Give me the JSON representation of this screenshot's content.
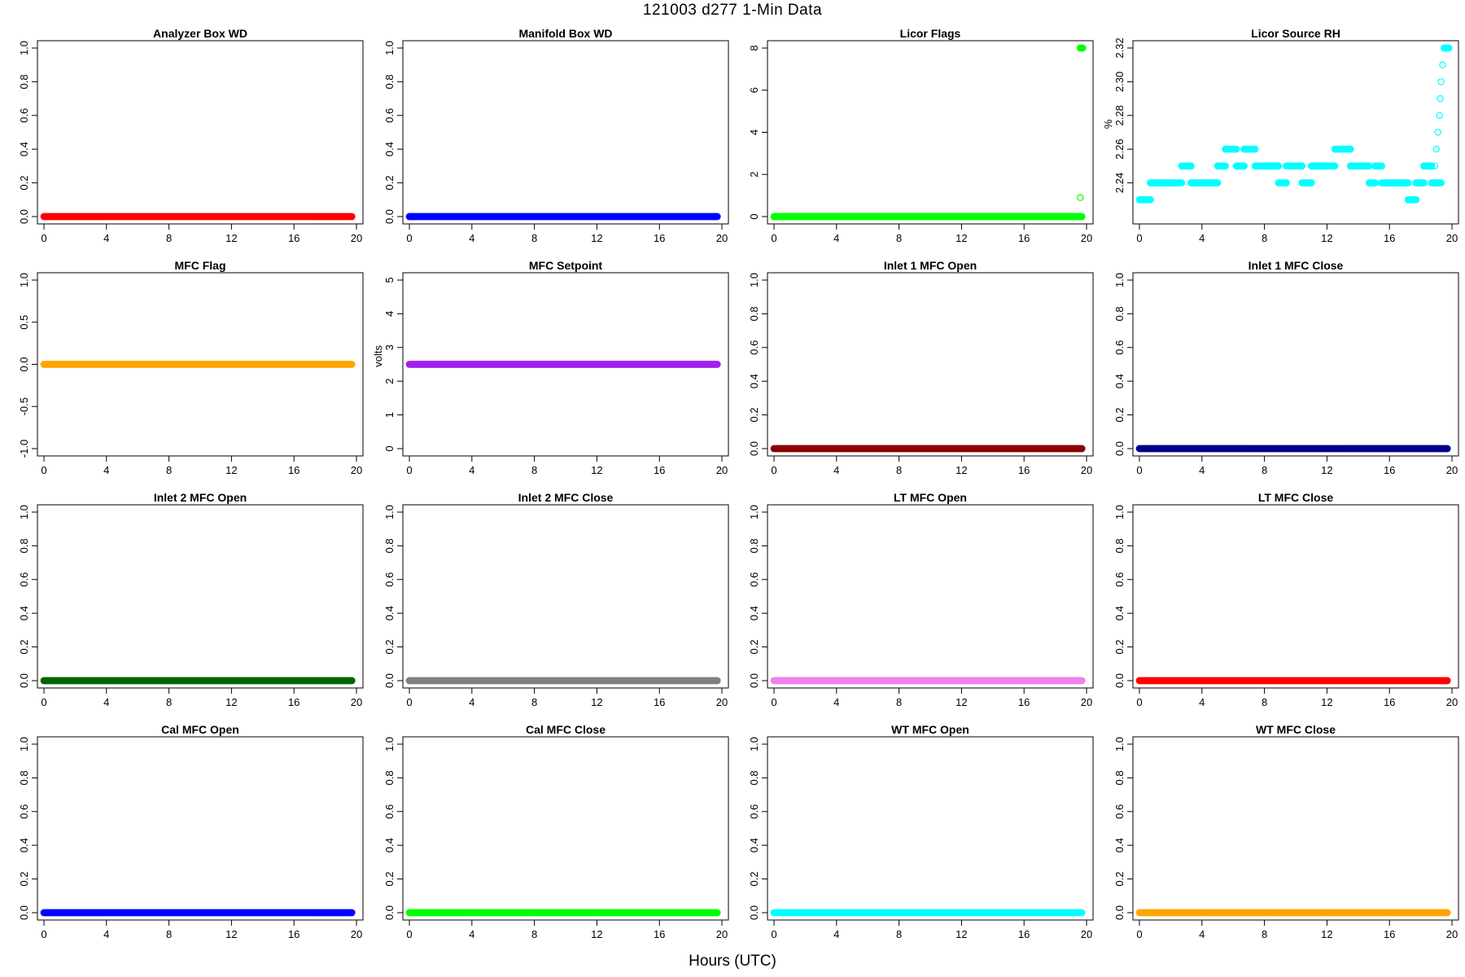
{
  "page": {
    "title": "121003   d277   1-Min Data",
    "xlabel": "Hours (UTC)"
  },
  "chart_data": [
    {
      "type": "scatter",
      "title": "Analyzer Box WD",
      "ylabel": "",
      "color": "#ff0000",
      "xlim": [
        0,
        20
      ],
      "ylim": [
        0,
        1
      ],
      "xticks": [
        0,
        4,
        8,
        12,
        16,
        20
      ],
      "yticks": [
        "0.0",
        "0.2",
        "0.4",
        "0.6",
        "0.8",
        "1.0"
      ],
      "series": [
        {
          "segments": [
            {
              "x": [
                0,
                19.7
              ],
              "y": 0
            }
          ]
        }
      ]
    },
    {
      "type": "scatter",
      "title": "Manifold Box WD",
      "ylabel": "",
      "color": "#0000ff",
      "xlim": [
        0,
        20
      ],
      "ylim": [
        0,
        1
      ],
      "xticks": [
        0,
        4,
        8,
        12,
        16,
        20
      ],
      "yticks": [
        "0.0",
        "0.2",
        "0.4",
        "0.6",
        "0.8",
        "1.0"
      ],
      "series": [
        {
          "segments": [
            {
              "x": [
                0,
                19.7
              ],
              "y": 0
            }
          ]
        }
      ]
    },
    {
      "type": "scatter",
      "title": "Licor Flags",
      "ylabel": "",
      "color": "#00ff00",
      "xlim": [
        0,
        20
      ],
      "ylim": [
        0,
        8
      ],
      "xticks": [
        0,
        4,
        8,
        12,
        16,
        20
      ],
      "yticks": [
        "0",
        "2",
        "4",
        "6",
        "8"
      ],
      "series": [
        {
          "segments": [
            {
              "x": [
                0,
                19.7
              ],
              "y": 0
            },
            {
              "x": [
                19.6,
                19.75
              ],
              "y": 8
            }
          ],
          "points": [
            {
              "x": 19.6,
              "y": 0.9
            }
          ]
        }
      ]
    },
    {
      "type": "scatter",
      "title": "Licor Source RH",
      "ylabel": "%",
      "color": "#00ffff",
      "xlim": [
        0,
        20
      ],
      "ylim": [
        2.22,
        2.32
      ],
      "xticks": [
        0,
        4,
        8,
        12,
        16,
        20
      ],
      "yticks": [
        "2.24",
        "2.26",
        "2.28",
        "2.30",
        "2.32"
      ],
      "series": [
        {
          "segments": [
            {
              "x": [
                0,
                0.7
              ],
              "y": 2.23
            },
            {
              "x": [
                0.7,
                2.7
              ],
              "y": 2.24
            },
            {
              "x": [
                2.7,
                3.3
              ],
              "y": 2.25
            },
            {
              "x": [
                3.3,
                5.0
              ],
              "y": 2.24
            },
            {
              "x": [
                5.0,
                5.5
              ],
              "y": 2.25
            },
            {
              "x": [
                5.5,
                6.2
              ],
              "y": 2.26
            },
            {
              "x": [
                6.2,
                6.7
              ],
              "y": 2.25
            },
            {
              "x": [
                6.7,
                7.4
              ],
              "y": 2.26
            },
            {
              "x": [
                7.4,
                8.9
              ],
              "y": 2.25
            },
            {
              "x": [
                8.9,
                9.4
              ],
              "y": 2.24
            },
            {
              "x": [
                9.4,
                10.4
              ],
              "y": 2.25
            },
            {
              "x": [
                10.4,
                11.0
              ],
              "y": 2.24
            },
            {
              "x": [
                11.0,
                12.5
              ],
              "y": 2.25
            },
            {
              "x": [
                12.5,
                13.5
              ],
              "y": 2.26
            },
            {
              "x": [
                13.5,
                14.7
              ],
              "y": 2.25
            },
            {
              "x": [
                14.7,
                15.1
              ],
              "y": 2.24
            },
            {
              "x": [
                15.1,
                15.5
              ],
              "y": 2.25
            },
            {
              "x": [
                15.5,
                17.2
              ],
              "y": 2.24
            },
            {
              "x": [
                17.2,
                17.7
              ],
              "y": 2.23
            },
            {
              "x": [
                17.7,
                18.2
              ],
              "y": 2.24
            },
            {
              "x": [
                18.2,
                18.7
              ],
              "y": 2.25
            },
            {
              "x": [
                18.7,
                19.3
              ],
              "y": 2.24
            },
            {
              "x": [
                19.5,
                19.8
              ],
              "y": 2.32
            }
          ],
          "points": [
            {
              "x": 18.9,
              "y": 2.25
            },
            {
              "x": 19.0,
              "y": 2.26
            },
            {
              "x": 19.1,
              "y": 2.27
            },
            {
              "x": 19.2,
              "y": 2.28
            },
            {
              "x": 19.25,
              "y": 2.29
            },
            {
              "x": 19.3,
              "y": 2.3
            },
            {
              "x": 19.4,
              "y": 2.31
            }
          ]
        }
      ]
    },
    {
      "type": "scatter",
      "title": "MFC Flag",
      "ylabel": "",
      "color": "#ffa500",
      "xlim": [
        0,
        20
      ],
      "ylim": [
        -1,
        1
      ],
      "xticks": [
        0,
        4,
        8,
        12,
        16,
        20
      ],
      "yticks": [
        "-1.0",
        "-0.5",
        "0.0",
        "0.5",
        "1.0"
      ],
      "series": [
        {
          "segments": [
            {
              "x": [
                0,
                19.7
              ],
              "y": 0
            }
          ]
        }
      ]
    },
    {
      "type": "scatter",
      "title": "MFC Setpoint",
      "ylabel": "volts",
      "color": "#a020f0",
      "xlim": [
        0,
        20
      ],
      "ylim": [
        0,
        5
      ],
      "xticks": [
        0,
        4,
        8,
        12,
        16,
        20
      ],
      "yticks": [
        "0",
        "1",
        "2",
        "3",
        "4",
        "5"
      ],
      "series": [
        {
          "segments": [
            {
              "x": [
                0,
                19.7
              ],
              "y": 2.5
            }
          ]
        }
      ]
    },
    {
      "type": "scatter",
      "title": "Inlet 1 MFC Open",
      "ylabel": "",
      "color": "#8b0000",
      "xlim": [
        0,
        20
      ],
      "ylim": [
        0,
        1
      ],
      "xticks": [
        0,
        4,
        8,
        12,
        16,
        20
      ],
      "yticks": [
        "0.0",
        "0.2",
        "0.4",
        "0.6",
        "0.8",
        "1.0"
      ],
      "series": [
        {
          "segments": [
            {
              "x": [
                0,
                19.7
              ],
              "y": 0
            }
          ]
        }
      ]
    },
    {
      "type": "scatter",
      "title": "Inlet 1 MFC Close",
      "ylabel": "",
      "color": "#00008b",
      "xlim": [
        0,
        20
      ],
      "ylim": [
        0,
        1
      ],
      "xticks": [
        0,
        4,
        8,
        12,
        16,
        20
      ],
      "yticks": [
        "0.0",
        "0.2",
        "0.4",
        "0.6",
        "0.8",
        "1.0"
      ],
      "series": [
        {
          "segments": [
            {
              "x": [
                0,
                19.7
              ],
              "y": 0
            }
          ]
        }
      ]
    },
    {
      "type": "scatter",
      "title": "Inlet 2 MFC Open",
      "ylabel": "",
      "color": "#006400",
      "xlim": [
        0,
        20
      ],
      "ylim": [
        0,
        1
      ],
      "xticks": [
        0,
        4,
        8,
        12,
        16,
        20
      ],
      "yticks": [
        "0.0",
        "0.2",
        "0.4",
        "0.6",
        "0.8",
        "1.0"
      ],
      "series": [
        {
          "segments": [
            {
              "x": [
                0,
                19.7
              ],
              "y": 0
            }
          ]
        }
      ]
    },
    {
      "type": "scatter",
      "title": "Inlet 2 MFC Close",
      "ylabel": "",
      "color": "#808080",
      "xlim": [
        0,
        20
      ],
      "ylim": [
        0,
        1
      ],
      "xticks": [
        0,
        4,
        8,
        12,
        16,
        20
      ],
      "yticks": [
        "0.0",
        "0.2",
        "0.4",
        "0.6",
        "0.8",
        "1.0"
      ],
      "series": [
        {
          "segments": [
            {
              "x": [
                0,
                19.7
              ],
              "y": 0
            }
          ]
        }
      ]
    },
    {
      "type": "scatter",
      "title": "LT MFC Open",
      "ylabel": "",
      "color": "#ee82ee",
      "xlim": [
        0,
        20
      ],
      "ylim": [
        0,
        1
      ],
      "xticks": [
        0,
        4,
        8,
        12,
        16,
        20
      ],
      "yticks": [
        "0.0",
        "0.2",
        "0.4",
        "0.6",
        "0.8",
        "1.0"
      ],
      "series": [
        {
          "segments": [
            {
              "x": [
                0,
                19.7
              ],
              "y": 0
            }
          ]
        }
      ]
    },
    {
      "type": "scatter",
      "title": "LT MFC Close",
      "ylabel": "",
      "color": "#ff0000",
      "xlim": [
        0,
        20
      ],
      "ylim": [
        0,
        1
      ],
      "xticks": [
        0,
        4,
        8,
        12,
        16,
        20
      ],
      "yticks": [
        "0.0",
        "0.2",
        "0.4",
        "0.6",
        "0.8",
        "1.0"
      ],
      "series": [
        {
          "segments": [
            {
              "x": [
                0,
                19.7
              ],
              "y": 0
            }
          ]
        }
      ]
    },
    {
      "type": "scatter",
      "title": "Cal MFC Open",
      "ylabel": "",
      "color": "#0000ff",
      "xlim": [
        0,
        20
      ],
      "ylim": [
        0,
        1
      ],
      "xticks": [
        0,
        4,
        8,
        12,
        16,
        20
      ],
      "yticks": [
        "0.0",
        "0.2",
        "0.4",
        "0.6",
        "0.8",
        "1.0"
      ],
      "series": [
        {
          "segments": [
            {
              "x": [
                0,
                19.7
              ],
              "y": 0
            }
          ]
        }
      ]
    },
    {
      "type": "scatter",
      "title": "Cal MFC Close",
      "ylabel": "",
      "color": "#00ff00",
      "xlim": [
        0,
        20
      ],
      "ylim": [
        0,
        1
      ],
      "xticks": [
        0,
        4,
        8,
        12,
        16,
        20
      ],
      "yticks": [
        "0.0",
        "0.2",
        "0.4",
        "0.6",
        "0.8",
        "1.0"
      ],
      "series": [
        {
          "segments": [
            {
              "x": [
                0,
                19.7
              ],
              "y": 0
            }
          ]
        }
      ]
    },
    {
      "type": "scatter",
      "title": "WT MFC Open",
      "ylabel": "",
      "color": "#00ffff",
      "xlim": [
        0,
        20
      ],
      "ylim": [
        0,
        1
      ],
      "xticks": [
        0,
        4,
        8,
        12,
        16,
        20
      ],
      "yticks": [
        "0.0",
        "0.2",
        "0.4",
        "0.6",
        "0.8",
        "1.0"
      ],
      "series": [
        {
          "segments": [
            {
              "x": [
                0,
                19.7
              ],
              "y": 0
            }
          ]
        }
      ]
    },
    {
      "type": "scatter",
      "title": "WT MFC Close",
      "ylabel": "",
      "color": "#ffa500",
      "xlim": [
        0,
        20
      ],
      "ylim": [
        0,
        1
      ],
      "xticks": [
        0,
        4,
        8,
        12,
        16,
        20
      ],
      "yticks": [
        "0.0",
        "0.2",
        "0.4",
        "0.6",
        "0.8",
        "1.0"
      ],
      "series": [
        {
          "segments": [
            {
              "x": [
                0,
                19.7
              ],
              "y": 0
            }
          ]
        }
      ]
    }
  ]
}
